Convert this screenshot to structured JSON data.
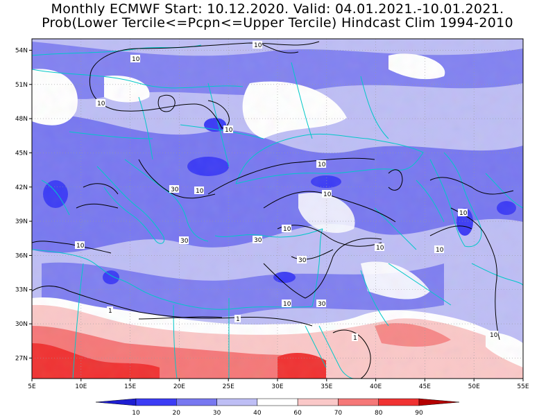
{
  "title": {
    "line1": "Monthly ECMWF Start: 10.12.2020. Valid: 04.01.2021.-10.01.2021.",
    "line2": "Prob(Lower Tercile<=Pcpn<=Upper Tercile) Hindcast Clim 1994-2010"
  },
  "lat_labels": [
    "54N",
    "51N",
    "48N",
    "45N",
    "42N",
    "39N",
    "36N",
    "33N",
    "30N",
    "27N"
  ],
  "lon_labels": [
    "5E",
    "10E",
    "15E",
    "20E",
    "25E",
    "30E",
    "35E",
    "40E",
    "45E",
    "50E",
    "55E"
  ],
  "colorbar": {
    "ticks": [
      "10",
      "20",
      "30",
      "40",
      "60",
      "70",
      "80",
      "90"
    ],
    "colors": [
      "#1e1ed2",
      "#3c3cf5",
      "#7878f0",
      "#bebef5",
      "#ffffff",
      "#fac8c8",
      "#f57878",
      "#f03232",
      "#b40000"
    ]
  },
  "contour_labels": [
    "10",
    "10",
    "10",
    "10",
    "10",
    "10",
    "10",
    "10",
    "10",
    "10",
    "10",
    "10",
    "10",
    "10",
    "30",
    "30",
    "30",
    "30",
    "30",
    "1",
    "1",
    "1"
  ],
  "colors": {
    "background": "#ffffff",
    "coast": "#00c8c8",
    "grid": "#999999"
  }
}
